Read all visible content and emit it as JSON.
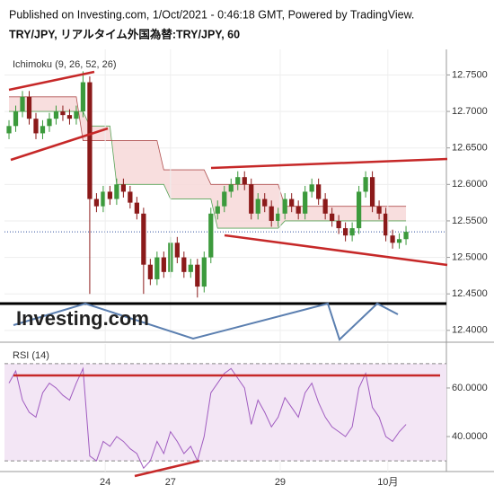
{
  "caption": "Published on Investing.com, 1/Oct/2021 - 0:46:18 GMT, Powered by TradingView.",
  "chart_data": [
    {
      "type": "candlestick",
      "title": "TRY/JPY, リアルタイム外国為替:TRY/JPY, 60",
      "indicator": "Ichimoku (9, 26, 52, 26)",
      "watermark": "Investing.com",
      "up_color": "#3c9a3c",
      "down_color": "#8b1a1a",
      "last_line_color": "#3050a0",
      "open": [
        12.67,
        12.68,
        12.7,
        12.72,
        12.69,
        12.67,
        12.68,
        12.69,
        12.7,
        12.695,
        12.69,
        12.7,
        12.74,
        12.58,
        12.57,
        12.59,
        12.58,
        12.6,
        12.59,
        12.575,
        12.56,
        12.49,
        12.47,
        12.5,
        12.48,
        12.52,
        12.5,
        12.48,
        12.49,
        12.46,
        12.5,
        12.56,
        12.57,
        12.59,
        12.6,
        12.61,
        12.6,
        12.56,
        12.58,
        12.57,
        12.55,
        12.56,
        12.58,
        12.57,
        12.56,
        12.59,
        12.6,
        12.58,
        12.56,
        12.55,
        12.54,
        12.53,
        12.54,
        12.59,
        12.61,
        12.57,
        12.56,
        12.53,
        12.52,
        12.525
      ],
      "high": [
        12.688,
        12.708,
        12.728,
        12.728,
        12.698,
        12.688,
        12.698,
        12.708,
        12.708,
        12.703,
        12.708,
        12.755,
        12.748,
        12.588,
        12.598,
        12.598,
        12.608,
        12.608,
        12.598,
        12.583,
        12.568,
        12.498,
        12.508,
        12.508,
        12.528,
        12.528,
        12.508,
        12.498,
        12.498,
        12.508,
        12.568,
        12.578,
        12.598,
        12.608,
        12.618,
        12.618,
        12.608,
        12.588,
        12.588,
        12.578,
        12.568,
        12.588,
        12.588,
        12.578,
        12.598,
        12.608,
        12.608,
        12.588,
        12.568,
        12.558,
        12.548,
        12.548,
        12.598,
        12.618,
        12.618,
        12.578,
        12.568,
        12.538,
        12.533,
        12.543
      ],
      "low": [
        12.662,
        12.672,
        12.692,
        12.682,
        12.662,
        12.662,
        12.672,
        12.682,
        12.687,
        12.682,
        12.682,
        12.692,
        12.45,
        12.562,
        12.562,
        12.572,
        12.572,
        12.582,
        12.567,
        12.552,
        12.45,
        12.462,
        12.462,
        12.472,
        12.472,
        12.492,
        12.472,
        12.472,
        12.445,
        12.452,
        12.492,
        12.552,
        12.562,
        12.582,
        12.592,
        12.592,
        12.552,
        12.552,
        12.562,
        12.542,
        12.542,
        12.552,
        12.562,
        12.552,
        12.552,
        12.582,
        12.572,
        12.552,
        12.542,
        12.532,
        12.522,
        12.522,
        12.532,
        12.582,
        12.562,
        12.552,
        12.522,
        12.512,
        12.512,
        12.517
      ],
      "close": [
        12.68,
        12.7,
        12.72,
        12.69,
        12.67,
        12.68,
        12.69,
        12.7,
        12.695,
        12.69,
        12.7,
        12.74,
        12.58,
        12.57,
        12.59,
        12.58,
        12.6,
        12.59,
        12.575,
        12.56,
        12.49,
        12.47,
        12.5,
        12.48,
        12.52,
        12.5,
        12.48,
        12.49,
        12.46,
        12.5,
        12.56,
        12.57,
        12.59,
        12.6,
        12.61,
        12.6,
        12.56,
        12.58,
        12.57,
        12.55,
        12.56,
        12.58,
        12.57,
        12.56,
        12.59,
        12.6,
        12.58,
        12.56,
        12.55,
        12.54,
        12.53,
        12.54,
        12.59,
        12.61,
        12.57,
        12.56,
        12.53,
        12.52,
        12.525,
        12.535
      ],
      "cloud": {
        "fill": "#f6d6d6",
        "span_a_color": "#5aa55a",
        "span_b_color": "#b05050",
        "span_a": [
          12.7,
          12.7,
          12.7,
          12.7,
          12.7,
          12.7,
          12.7,
          12.7,
          12.7,
          12.7,
          12.7,
          12.7,
          12.68,
          12.68,
          12.68,
          12.68,
          12.6,
          12.6,
          12.6,
          12.6,
          12.6,
          12.6,
          12.6,
          12.6,
          12.58,
          12.58,
          12.58,
          12.58,
          12.58,
          12.58,
          12.58,
          12.54,
          12.54,
          12.54,
          12.54,
          12.54,
          12.54,
          12.54,
          12.54,
          12.54,
          12.54,
          12.55,
          12.55,
          12.55,
          12.55,
          12.55,
          12.55,
          12.55,
          12.55,
          12.55,
          12.55,
          12.55,
          12.55,
          12.55,
          12.55,
          12.55,
          12.55,
          12.55,
          12.55,
          12.55
        ],
        "span_b": [
          12.72,
          12.72,
          12.72,
          12.72,
          12.72,
          12.72,
          12.72,
          12.72,
          12.72,
          12.72,
          12.72,
          12.66,
          12.66,
          12.66,
          12.66,
          12.66,
          12.66,
          12.66,
          12.66,
          12.66,
          12.66,
          12.66,
          12.66,
          12.62,
          12.62,
          12.62,
          12.62,
          12.62,
          12.62,
          12.62,
          12.6,
          12.6,
          12.6,
          12.6,
          12.6,
          12.6,
          12.6,
          12.6,
          12.6,
          12.6,
          12.6,
          12.57,
          12.57,
          12.57,
          12.57,
          12.57,
          12.57,
          12.57,
          12.57,
          12.57,
          12.57,
          12.57,
          12.57,
          12.57,
          12.57,
          12.57,
          12.57,
          12.57,
          12.57,
          12.57
        ]
      },
      "xlim": [
        -0.67,
        65.0
      ],
      "ylim": [
        12.385,
        12.785
      ],
      "yticks": [
        {
          "value": 12.4,
          "label": "12.4000"
        },
        {
          "value": 12.45,
          "label": "12.4500"
        },
        {
          "value": 12.5,
          "label": "12.5000"
        },
        {
          "value": 12.55,
          "label": "12.5500"
        },
        {
          "value": 12.6,
          "label": "12.6000"
        },
        {
          "value": 12.65,
          "label": "12.6500"
        },
        {
          "value": 12.7,
          "label": "12.7000"
        },
        {
          "value": 12.75,
          "label": "12.7500"
        }
      ],
      "grid": true
    },
    {
      "type": "line",
      "title": "RSI (14)",
      "color": "#a05cc0",
      "band_fill": "#f3e6f5",
      "bands": [
        30,
        70
      ],
      "values": [
        62,
        67,
        55,
        50,
        48,
        58,
        62,
        60,
        57,
        55,
        62,
        68,
        32,
        30,
        38,
        36,
        40,
        38,
        35,
        33,
        27,
        30,
        38,
        33,
        42,
        38,
        33,
        36,
        30,
        40,
        58,
        62,
        66,
        68,
        64,
        60,
        45,
        55,
        50,
        44,
        48,
        56,
        52,
        48,
        58,
        62,
        54,
        48,
        44,
        42,
        40,
        44,
        60,
        66,
        52,
        48,
        40,
        38,
        42,
        45
      ],
      "xlim": [
        -0.67,
        65.0
      ],
      "ylim": [
        25.6,
        78.1
      ],
      "yticks": [
        {
          "value": 40,
          "label": "40.0000"
        },
        {
          "value": 60,
          "label": "60.0000"
        }
      ],
      "xticks": [
        {
          "value": 14.3,
          "label": "24"
        },
        {
          "value": 24.0,
          "label": "27"
        },
        {
          "value": 40.3,
          "label": "29"
        },
        {
          "value": 56.3,
          "label": "10月"
        }
      ],
      "grid": true
    }
  ]
}
